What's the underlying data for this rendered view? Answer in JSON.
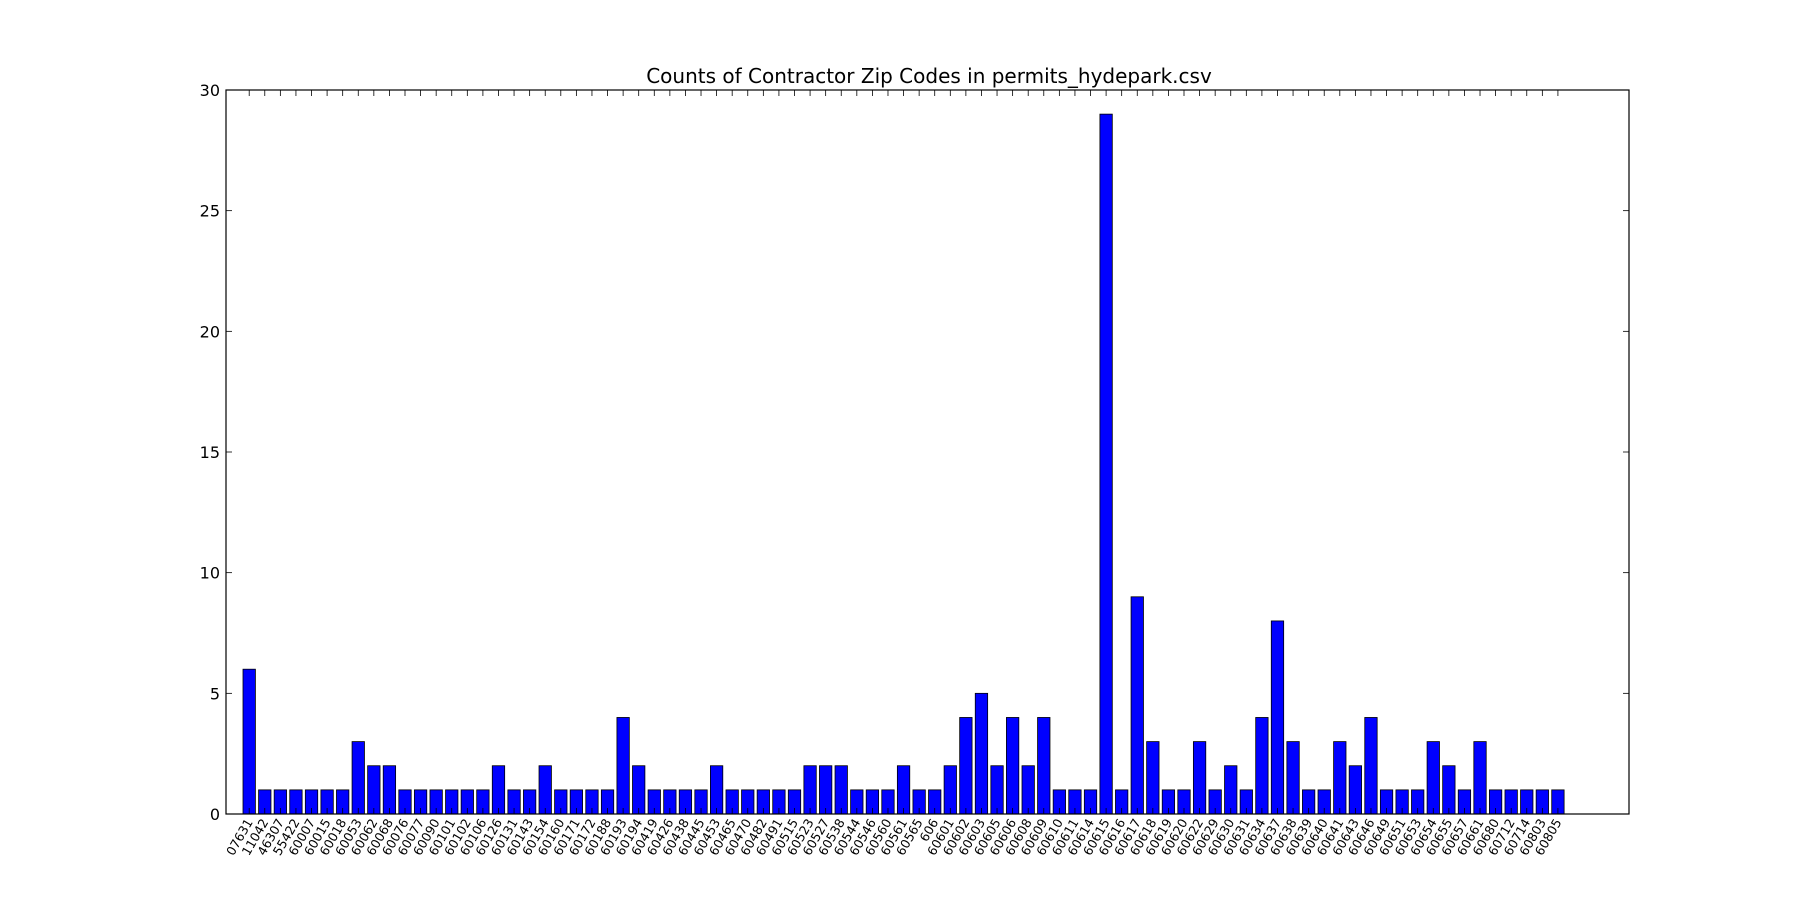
{
  "chart_data": {
    "type": "bar",
    "title": "Counts of Contractor Zip Codes in permits_hydepark.csv",
    "xlabel": "",
    "ylabel": "",
    "ylim": [
      0,
      30
    ],
    "yticks": [
      0,
      5,
      10,
      15,
      20,
      25,
      30
    ],
    "grid": false,
    "bar_color": "#0000ff",
    "categories": [
      "07631",
      "11042",
      "46307",
      "55422",
      "60007",
      "60015",
      "60018",
      "60053",
      "60062",
      "60068",
      "60076",
      "60077",
      "60090",
      "60101",
      "60102",
      "60106",
      "60126",
      "60131",
      "60143",
      "60154",
      "60160",
      "60171",
      "60172",
      "60188",
      "60193",
      "60194",
      "60419",
      "60426",
      "60438",
      "60445",
      "60453",
      "60465",
      "60470",
      "60482",
      "60491",
      "60515",
      "60523",
      "60527",
      "60538",
      "60544",
      "60546",
      "60560",
      "60561",
      "60565",
      "606",
      "60601",
      "60602",
      "60603",
      "60605",
      "60606",
      "60608",
      "60609",
      "60610",
      "60611",
      "60614",
      "60615",
      "60616",
      "60617",
      "60618",
      "60619",
      "60620",
      "60622",
      "60629",
      "60630",
      "60631",
      "60634",
      "60637",
      "60638",
      "60639",
      "60640",
      "60641",
      "60643",
      "60646",
      "60649",
      "60651",
      "60653",
      "60654",
      "60655",
      "60657",
      "60661",
      "60680",
      "60712",
      "60714",
      "60803",
      "60805"
    ],
    "values": [
      6,
      1,
      1,
      1,
      1,
      1,
      1,
      3,
      2,
      2,
      1,
      1,
      1,
      1,
      1,
      1,
      2,
      1,
      1,
      2,
      1,
      1,
      1,
      1,
      4,
      2,
      1,
      1,
      1,
      1,
      2,
      1,
      1,
      1,
      1,
      1,
      2,
      2,
      2,
      1,
      1,
      1,
      2,
      1,
      1,
      2,
      4,
      5,
      2,
      4,
      2,
      4,
      1,
      1,
      1,
      29,
      1,
      9,
      3,
      1,
      1,
      3,
      1,
      2,
      1,
      4,
      8,
      3,
      1,
      1,
      3,
      2,
      4,
      1,
      1,
      1,
      3,
      2,
      1,
      3,
      1,
      1,
      1,
      1,
      1
    ]
  }
}
